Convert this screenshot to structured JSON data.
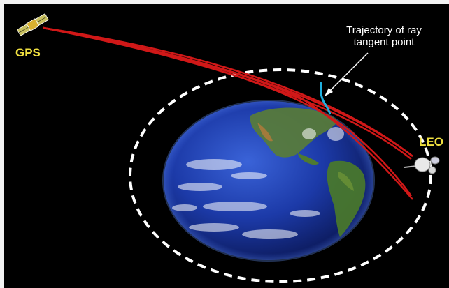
{
  "labels": {
    "gps": "GPS",
    "leo": "LEO",
    "annotation_line1": "Trajectory of ray",
    "annotation_line2": "tangent point"
  },
  "colors": {
    "background": "#000000",
    "ray": "#d01818",
    "orbit": "#ffffff",
    "tangent_trajectory": "#1fb0e0",
    "satellite_label": "#f0e040",
    "ocean": "#1c3aa8",
    "land": "#4a7a2a"
  },
  "icons": {
    "gps": "gps-satellite-icon",
    "leo": "leo-satellite-icon",
    "earth": "earth-globe"
  }
}
